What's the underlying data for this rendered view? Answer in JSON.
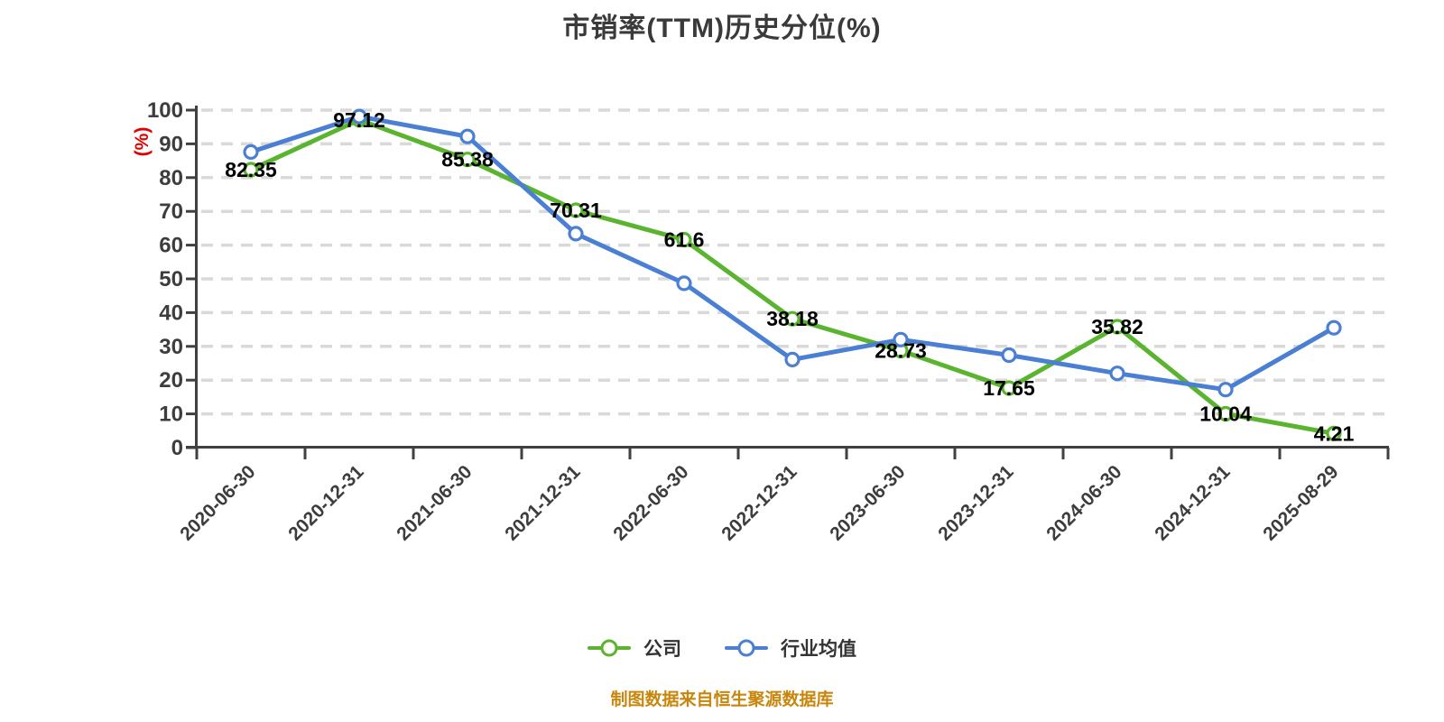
{
  "title": "市销率(TTM)历史分位(%)",
  "source_note": "制图数据来自恒生聚源数据库",
  "colors": {
    "company_green": "#5ab42f",
    "industry_blue": "#4a7fd4",
    "grid_line": "#d9d9d9",
    "axis_line": "#404040",
    "axis_text": "#3d3d3d",
    "data_label": "#000000",
    "y_axis_name_red": "#e00000",
    "source_note_orange": "#c8860d",
    "marker_fill": "#ffffff"
  },
  "chart_data": {
    "type": "line",
    "title": "市销率(TTM)历史分位(%)",
    "categories": [
      "2020-06-30",
      "2020-12-31",
      "2021-06-30",
      "2021-12-31",
      "2022-06-30",
      "2022-12-31",
      "2023-06-30",
      "2023-12-31",
      "2024-06-30",
      "2024-12-31",
      "2025-08-29"
    ],
    "series": [
      {
        "name": "公司",
        "color": "#5ab42f",
        "values": [
          82.35,
          97.12,
          85.38,
          70.31,
          61.6,
          38.18,
          28.73,
          17.65,
          35.82,
          10.04,
          4.21
        ],
        "value_labels": [
          "82.35",
          "97.12",
          "85.38",
          "70.31",
          "61.6",
          "38.18",
          "28.73",
          "17.65",
          "35.82",
          "10.04",
          "4.21"
        ],
        "labels_visible": true
      },
      {
        "name": "行业均值",
        "color": "#4a7fd4",
        "values": [
          87.6,
          98.1,
          92.2,
          63.4,
          48.7,
          26.1,
          32.0,
          27.4,
          22.0,
          17.2,
          35.5
        ],
        "value_labels": [],
        "labels_visible": false
      }
    ],
    "y_axis": {
      "name": "(%)",
      "min": 0,
      "max": 100,
      "interval": 10,
      "ticks": [
        0,
        10,
        20,
        30,
        40,
        50,
        60,
        70,
        80,
        90,
        100
      ]
    },
    "grid": "horizontal-dashed",
    "legend_position": "bottom"
  }
}
